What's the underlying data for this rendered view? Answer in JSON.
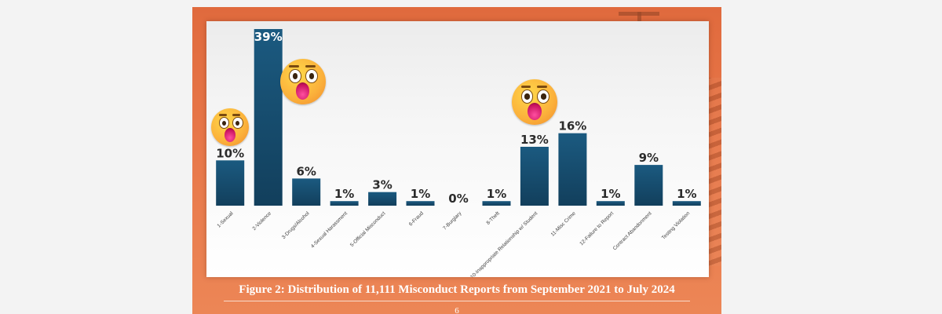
{
  "chart_data": {
    "type": "bar",
    "categories": [
      "1-Sexual",
      "2-Violence",
      "3-Drugs/Alcohol",
      "4-Sexual Harassment",
      "5-Official Misconduct",
      "6-Fraud",
      "7-Burglary",
      "8-Theft",
      "10-Inappropriate Relationship w/ Student",
      "11-Misc Crime",
      "12-Failure to Report",
      "Contract Abandonment",
      "Testing Violation"
    ],
    "values": [
      10,
      39,
      6,
      1,
      3,
      1,
      0,
      1,
      13,
      16,
      1,
      9,
      1
    ],
    "value_labels": [
      "10%",
      "39%",
      "6%",
      "1%",
      "3%",
      "1%",
      "0%",
      "1%",
      "13%",
      "16%",
      "1%",
      "9%",
      "1%"
    ],
    "ylim": [
      0,
      39
    ],
    "grid": false,
    "legend": "none",
    "bar_color": "#1b5a80",
    "bar_color_bottom": "#123f5c"
  },
  "figure_caption": "Figure 2:  Distribution of 11,111 Misconduct Reports from September 2021 to July 2024",
  "page_number": "6",
  "decorations": {
    "emoji": "shocked-face-icon",
    "emoji_on_categories": [
      0,
      1,
      8
    ]
  }
}
